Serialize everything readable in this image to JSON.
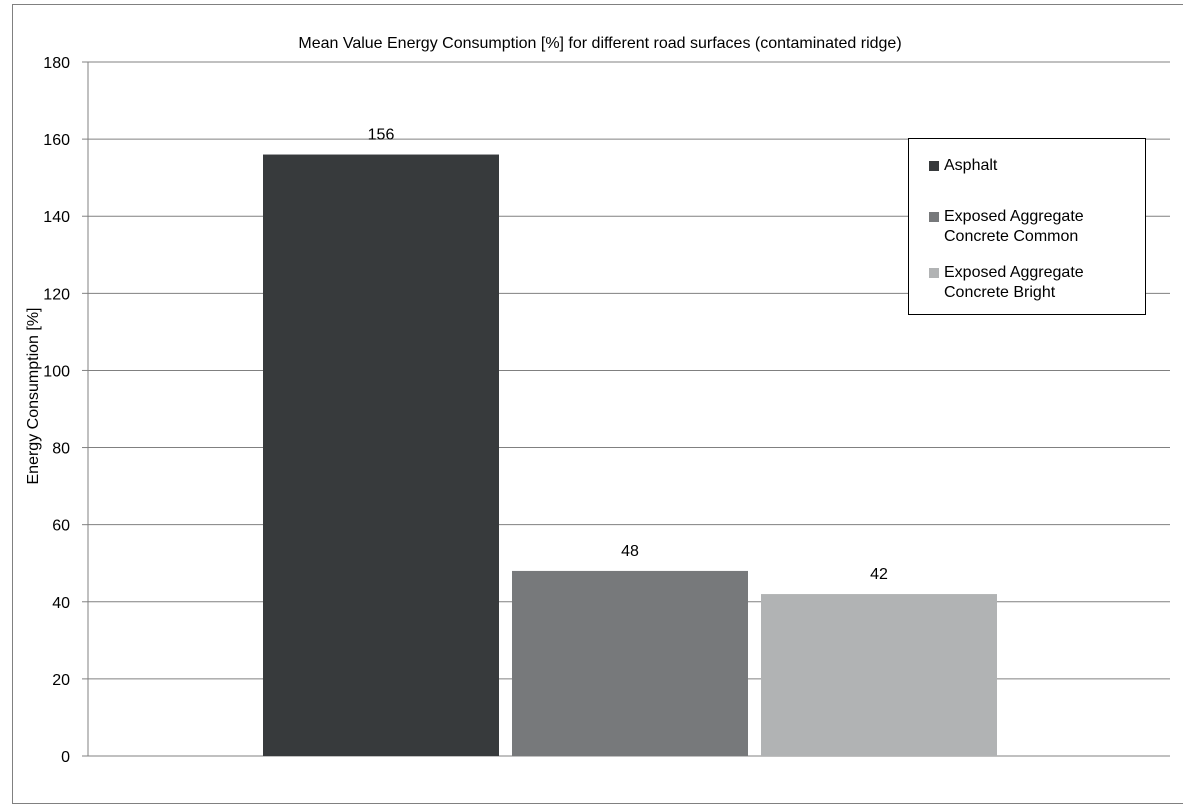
{
  "chart_data": {
    "type": "bar",
    "title": "Mean Value Energy Consumption [%] for different road surfaces (contaminated ridge)",
    "xlabel": "",
    "ylabel": "Energy Consumption [%]",
    "ylim": [
      0,
      180
    ],
    "yticks": [
      0,
      20,
      40,
      60,
      80,
      100,
      120,
      140,
      160,
      180
    ],
    "yticks_labels": [
      "0",
      "20",
      "40",
      "60",
      "80",
      "100",
      "120",
      "140",
      "160",
      "180"
    ],
    "grid": true,
    "legend_position": "top-right",
    "series": [
      {
        "name": "Asphalt",
        "legend_lines": [
          "Asphalt"
        ],
        "value": 156,
        "label": "156",
        "color": "#373a3c"
      },
      {
        "name": "Exposed Aggregate Concrete Common",
        "legend_lines": [
          "Exposed Aggregate",
          "Concrete Common"
        ],
        "value": 48,
        "label": "48",
        "color": "#77797b"
      },
      {
        "name": "Exposed Aggregate Concrete Bright",
        "legend_lines": [
          "Exposed Aggregate",
          "Concrete Bright"
        ],
        "value": 42,
        "label": "42",
        "color": "#b1b3b4"
      }
    ]
  }
}
